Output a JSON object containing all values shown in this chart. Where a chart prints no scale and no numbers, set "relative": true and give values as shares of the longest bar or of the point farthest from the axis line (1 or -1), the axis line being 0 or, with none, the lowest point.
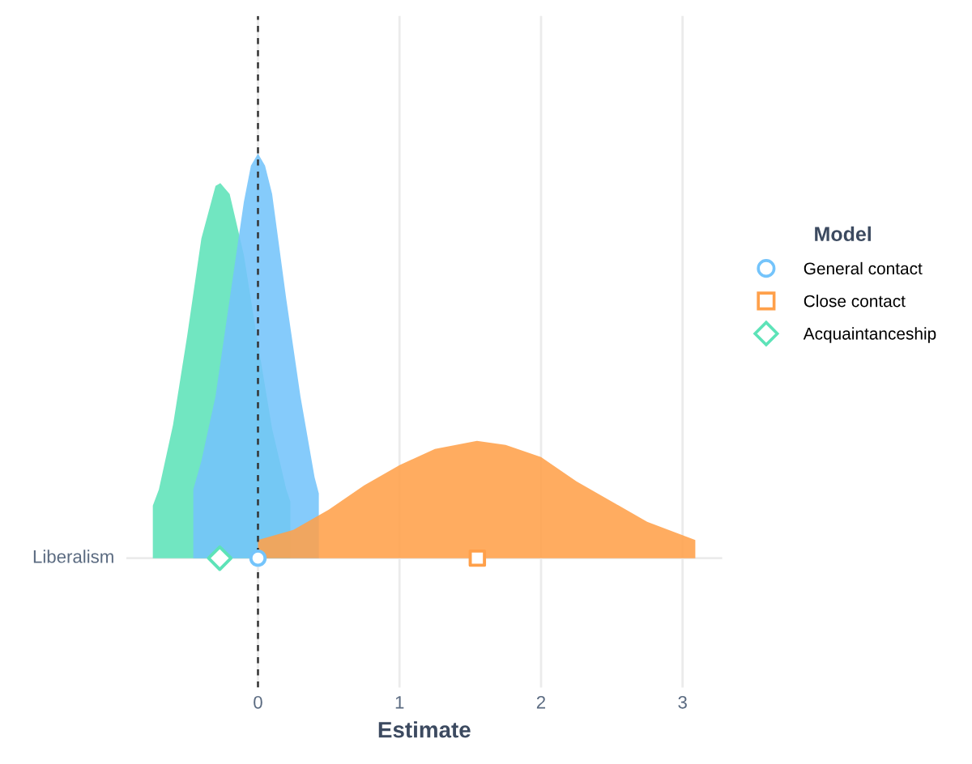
{
  "chart_data": {
    "type": "area",
    "relative": true,
    "xlabel": "Estimate",
    "legend_title": "Model",
    "legend": "right",
    "grid": "x",
    "annotations": [
      "Liberalism"
    ],
    "xlim": [
      -0.93,
      3.28
    ],
    "xticks": [
      0,
      1,
      2,
      3
    ],
    "ref_lines": [
      {
        "axis": "x",
        "value": 0,
        "color": "#333333",
        "line_style": "dashed"
      }
    ],
    "series": [
      {
        "color": "#5de3b8",
        "x": [
          -0.743,
          -0.7,
          -0.6,
          -0.5,
          -0.4,
          -0.3,
          -0.266,
          -0.2,
          -0.1,
          0,
          0.1,
          0.2,
          0.229
        ],
        "values": [
          0.13,
          0.17,
          0.33,
          0.55,
          0.79,
          0.92,
          0.927,
          0.9,
          0.75,
          0.53,
          0.32,
          0.17,
          0.14
        ]
      },
      {
        "color": "#74c4fb",
        "x": [
          -0.457,
          -0.4,
          -0.3,
          -0.2,
          -0.1,
          -0.05,
          0,
          0.05,
          0.1,
          0.2,
          0.3,
          0.4,
          0.43
        ],
        "values": [
          0.17,
          0.24,
          0.4,
          0.64,
          0.88,
          0.97,
          1.0,
          0.97,
          0.9,
          0.64,
          0.4,
          0.2,
          0.16
        ]
      },
      {
        "color": "#ffa04a",
        "x": [
          0,
          0.25,
          0.5,
          0.75,
          1.0,
          1.25,
          1.547,
          1.75,
          2.0,
          2.25,
          2.5,
          2.75,
          3.09
        ],
        "values": [
          0.045,
          0.07,
          0.12,
          0.18,
          0.23,
          0.27,
          0.29,
          0.28,
          0.25,
          0.19,
          0.14,
          0.09,
          0.045
        ]
      },
      {
        "type": "scatter",
        "name": "General contact",
        "color": "#74c4fb",
        "marker": "circle",
        "x": [
          0.0
        ],
        "values": [
          0
        ]
      },
      {
        "type": "scatter",
        "name": "Close contact",
        "color": "#ffa04a",
        "marker": "square",
        "x": [
          1.55
        ],
        "values": [
          0
        ]
      },
      {
        "type": "scatter",
        "name": "Acquaintanceship",
        "color": "#5de3b8",
        "marker": "diamond",
        "x": [
          -0.27
        ],
        "values": [
          0
        ]
      }
    ]
  }
}
